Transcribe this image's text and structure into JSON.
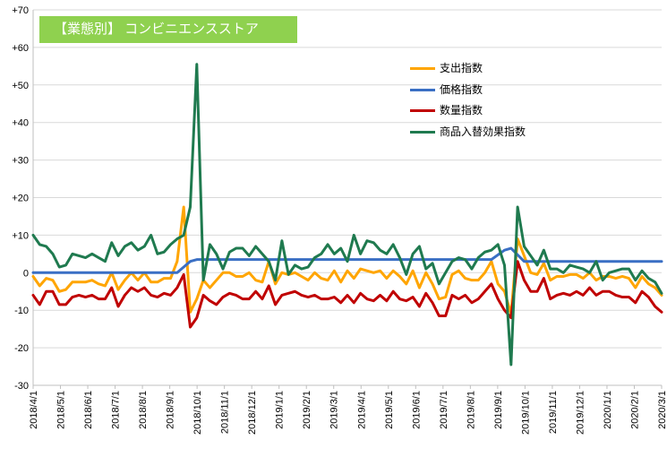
{
  "chart_data": {
    "type": "line",
    "title": "【業態別】 コンビニエンスストア",
    "ylim": [
      -30,
      70
    ],
    "y_ticks": [
      "+70",
      "+60",
      "+50",
      "+40",
      "+30",
      "+20",
      "+10",
      "0",
      "-10",
      "-20",
      "-30"
    ],
    "y_tick_values": [
      70,
      60,
      50,
      40,
      30,
      20,
      10,
      0,
      -10,
      -20,
      -30
    ],
    "x_ticks": [
      "2018/4/1",
      "2018/5/1",
      "2018/6/1",
      "2018/7/1",
      "2018/8/1",
      "2018/9/1",
      "2018/10/1",
      "2018/11/1",
      "2018/12/1",
      "2019/1/1",
      "2019/2/1",
      "2019/3/1",
      "2019/4/1",
      "2019/5/1",
      "2019/6/1",
      "2019/7/1",
      "2019/8/1",
      "2019/9/1",
      "2019/10/1",
      "2019/11/1",
      "2019/12/1",
      "2020/1/1",
      "2020/2/1",
      "2020/3/1"
    ],
    "grid": "horizontal",
    "legend_position": "top-right",
    "series": [
      {
        "name": "支出指数",
        "color": "#ffa500",
        "points": [
          [
            0,
            -1
          ],
          [
            1,
            -3.5
          ],
          [
            2,
            -1.5
          ],
          [
            3,
            -2
          ],
          [
            4,
            -5
          ],
          [
            5,
            -4.5
          ],
          [
            6,
            -2.5
          ],
          [
            7,
            -2.5
          ],
          [
            8,
            -2.5
          ],
          [
            9,
            -2
          ],
          [
            10,
            -3
          ],
          [
            11,
            -3.5
          ],
          [
            12,
            0
          ],
          [
            13,
            -4.5
          ],
          [
            14,
            -2
          ],
          [
            15,
            0
          ],
          [
            16,
            -2
          ],
          [
            17,
            0
          ],
          [
            18,
            -2.5
          ],
          [
            19,
            -2.5
          ],
          [
            20,
            -1.5
          ],
          [
            21,
            -1.5
          ],
          [
            22,
            3
          ],
          [
            23,
            17.5
          ],
          [
            24,
            -10.5
          ],
          [
            25,
            -7
          ],
          [
            26,
            -2
          ],
          [
            27,
            -4
          ],
          [
            28,
            -2
          ],
          [
            29,
            0
          ],
          [
            30,
            0
          ],
          [
            31,
            -1
          ],
          [
            32,
            -1
          ],
          [
            33,
            0
          ],
          [
            34,
            -2
          ],
          [
            35,
            -2.5
          ],
          [
            36,
            3
          ],
          [
            37,
            -3
          ],
          [
            38,
            0
          ],
          [
            39,
            -0.5
          ],
          [
            40,
            0
          ],
          [
            41,
            -1
          ],
          [
            42,
            -2
          ],
          [
            43,
            0
          ],
          [
            44,
            -1.5
          ],
          [
            45,
            -2
          ],
          [
            46,
            0.5
          ],
          [
            47,
            -2.5
          ],
          [
            48,
            0.5
          ],
          [
            49,
            -1.5
          ],
          [
            50,
            1
          ],
          [
            51,
            0.5
          ],
          [
            52,
            0
          ],
          [
            53,
            0.5
          ],
          [
            54,
            -1.5
          ],
          [
            55,
            0.5
          ],
          [
            56,
            -1
          ],
          [
            57,
            -3
          ],
          [
            58,
            0.5
          ],
          [
            59,
            -4
          ],
          [
            60,
            0
          ],
          [
            61,
            -3
          ],
          [
            62,
            -7
          ],
          [
            63,
            -6.5
          ],
          [
            64,
            -0.5
          ],
          [
            65,
            0.5
          ],
          [
            66,
            -1.5
          ],
          [
            67,
            -2
          ],
          [
            68,
            -2
          ],
          [
            69,
            0
          ],
          [
            70,
            3
          ],
          [
            71,
            -3
          ],
          [
            72,
            -5
          ],
          [
            73,
            -11
          ],
          [
            74,
            9
          ],
          [
            75,
            4.5
          ],
          [
            76,
            0
          ],
          [
            77,
            -0.5
          ],
          [
            78,
            2.5
          ],
          [
            79,
            -2
          ],
          [
            80,
            -1
          ],
          [
            81,
            -1
          ],
          [
            82,
            -0.5
          ],
          [
            83,
            -0.5
          ],
          [
            84,
            -1.5
          ],
          [
            85,
            0
          ],
          [
            86,
            -2
          ],
          [
            87,
            -1
          ],
          [
            88,
            -1
          ],
          [
            89,
            -1.5
          ],
          [
            90,
            -1
          ],
          [
            91,
            -1.5
          ],
          [
            92,
            -4
          ],
          [
            93,
            -1
          ],
          [
            94,
            -3
          ],
          [
            95,
            -4
          ],
          [
            96,
            -6
          ]
        ]
      },
      {
        "name": "価格指数",
        "color": "#3a6fc4",
        "points": [
          [
            0,
            0
          ],
          [
            22,
            0
          ],
          [
            24,
            3
          ],
          [
            25,
            3.5
          ],
          [
            50,
            3.5
          ],
          [
            70,
            3.5
          ],
          [
            72,
            6
          ],
          [
            73,
            6.5
          ],
          [
            75,
            3
          ],
          [
            96,
            3
          ]
        ]
      },
      {
        "name": "数量指数",
        "color": "#c00000",
        "points": [
          [
            0,
            -6
          ],
          [
            1,
            -8.5
          ],
          [
            2,
            -5
          ],
          [
            3,
            -5
          ],
          [
            4,
            -8.5
          ],
          [
            5,
            -8.5
          ],
          [
            6,
            -6.5
          ],
          [
            7,
            -6
          ],
          [
            8,
            -6.5
          ],
          [
            9,
            -6
          ],
          [
            10,
            -7
          ],
          [
            11,
            -7
          ],
          [
            12,
            -4
          ],
          [
            13,
            -9
          ],
          [
            14,
            -6
          ],
          [
            15,
            -4
          ],
          [
            16,
            -5
          ],
          [
            17,
            -4
          ],
          [
            18,
            -6
          ],
          [
            19,
            -6.5
          ],
          [
            20,
            -5.5
          ],
          [
            21,
            -6
          ],
          [
            22,
            -4
          ],
          [
            23,
            -0.5
          ],
          [
            24,
            -14.5
          ],
          [
            25,
            -12
          ],
          [
            26,
            -6
          ],
          [
            27,
            -7.5
          ],
          [
            28,
            -8.5
          ],
          [
            29,
            -6.5
          ],
          [
            30,
            -5.5
          ],
          [
            31,
            -6
          ],
          [
            32,
            -7
          ],
          [
            33,
            -7
          ],
          [
            34,
            -5
          ],
          [
            35,
            -7
          ],
          [
            36,
            -3.5
          ],
          [
            37,
            -8.5
          ],
          [
            38,
            -6
          ],
          [
            39,
            -5.5
          ],
          [
            40,
            -5
          ],
          [
            41,
            -6
          ],
          [
            42,
            -6.5
          ],
          [
            43,
            -6
          ],
          [
            44,
            -7
          ],
          [
            45,
            -7
          ],
          [
            46,
            -6.5
          ],
          [
            47,
            -8
          ],
          [
            48,
            -6
          ],
          [
            49,
            -8
          ],
          [
            50,
            -5.5
          ],
          [
            51,
            -7
          ],
          [
            52,
            -7.5
          ],
          [
            53,
            -6
          ],
          [
            54,
            -7.5
          ],
          [
            55,
            -5
          ],
          [
            56,
            -7
          ],
          [
            57,
            -7.5
          ],
          [
            58,
            -6.5
          ],
          [
            59,
            -9
          ],
          [
            60,
            -5.5
          ],
          [
            61,
            -8
          ],
          [
            62,
            -11.5
          ],
          [
            63,
            -11.5
          ],
          [
            64,
            -6
          ],
          [
            65,
            -7
          ],
          [
            66,
            -6
          ],
          [
            67,
            -8
          ],
          [
            68,
            -7
          ],
          [
            69,
            -5
          ],
          [
            70,
            -3
          ],
          [
            71,
            -7
          ],
          [
            72,
            -10
          ],
          [
            73,
            -12
          ],
          [
            74,
            3
          ],
          [
            75,
            -2
          ],
          [
            76,
            -5
          ],
          [
            77,
            -5
          ],
          [
            78,
            -1.5
          ],
          [
            79,
            -7
          ],
          [
            80,
            -6
          ],
          [
            81,
            -5.5
          ],
          [
            82,
            -6
          ],
          [
            83,
            -5
          ],
          [
            84,
            -6
          ],
          [
            85,
            -4
          ],
          [
            86,
            -6
          ],
          [
            87,
            -5
          ],
          [
            88,
            -5
          ],
          [
            89,
            -6
          ],
          [
            90,
            -6.5
          ],
          [
            91,
            -6.5
          ],
          [
            92,
            -8
          ],
          [
            93,
            -5
          ],
          [
            94,
            -6.5
          ],
          [
            95,
            -9
          ],
          [
            96,
            -10.5
          ]
        ]
      },
      {
        "name": "商品入替効果指数",
        "color": "#1f7a4f",
        "points": [
          [
            0,
            10
          ],
          [
            1,
            7.5
          ],
          [
            2,
            7
          ],
          [
            3,
            5
          ],
          [
            4,
            1.5
          ],
          [
            5,
            2
          ],
          [
            6,
            5
          ],
          [
            7,
            4.5
          ],
          [
            8,
            4
          ],
          [
            9,
            5
          ],
          [
            10,
            4
          ],
          [
            11,
            3
          ],
          [
            12,
            8
          ],
          [
            13,
            4.5
          ],
          [
            14,
            7
          ],
          [
            15,
            8
          ],
          [
            16,
            6
          ],
          [
            17,
            7
          ],
          [
            18,
            10
          ],
          [
            19,
            5
          ],
          [
            20,
            5.5
          ],
          [
            21,
            7.5
          ],
          [
            22,
            9
          ],
          [
            23,
            10
          ],
          [
            24,
            17.5
          ],
          [
            25,
            55.5
          ],
          [
            26,
            -2
          ],
          [
            27,
            7.5
          ],
          [
            28,
            5
          ],
          [
            29,
            1
          ],
          [
            30,
            5.5
          ],
          [
            31,
            6.5
          ],
          [
            32,
            6.5
          ],
          [
            33,
            4.5
          ],
          [
            34,
            7
          ],
          [
            35,
            5
          ],
          [
            36,
            3
          ],
          [
            37,
            -2
          ],
          [
            38,
            8.5
          ],
          [
            39,
            -0.5
          ],
          [
            40,
            2
          ],
          [
            41,
            1
          ],
          [
            42,
            1.5
          ],
          [
            43,
            4
          ],
          [
            44,
            5
          ],
          [
            45,
            7.5
          ],
          [
            46,
            5
          ],
          [
            47,
            6.5
          ],
          [
            48,
            3
          ],
          [
            49,
            10
          ],
          [
            50,
            5
          ],
          [
            51,
            8.5
          ],
          [
            52,
            8
          ],
          [
            53,
            6
          ],
          [
            54,
            5
          ],
          [
            55,
            7.5
          ],
          [
            56,
            4
          ],
          [
            57,
            -0.5
          ],
          [
            58,
            5
          ],
          [
            59,
            7
          ],
          [
            60,
            1
          ],
          [
            61,
            2.5
          ],
          [
            62,
            -3
          ],
          [
            63,
            0
          ],
          [
            64,
            3
          ],
          [
            65,
            4
          ],
          [
            66,
            3.5
          ],
          [
            67,
            1
          ],
          [
            68,
            4
          ],
          [
            69,
            5.5
          ],
          [
            70,
            6
          ],
          [
            71,
            7.5
          ],
          [
            72,
            2
          ],
          [
            73,
            -24.5
          ],
          [
            74,
            17.5
          ],
          [
            75,
            7
          ],
          [
            76,
            4.5
          ],
          [
            77,
            2
          ],
          [
            78,
            6
          ],
          [
            79,
            1
          ],
          [
            80,
            1
          ],
          [
            81,
            0
          ],
          [
            82,
            2
          ],
          [
            83,
            1.5
          ],
          [
            84,
            1
          ],
          [
            85,
            0
          ],
          [
            86,
            3
          ],
          [
            87,
            -2
          ],
          [
            88,
            0
          ],
          [
            89,
            0.5
          ],
          [
            90,
            1
          ],
          [
            91,
            1
          ],
          [
            92,
            -2
          ],
          [
            93,
            0.5
          ],
          [
            94,
            -1.5
          ],
          [
            95,
            -2.5
          ],
          [
            96,
            -5.5
          ]
        ]
      }
    ]
  }
}
